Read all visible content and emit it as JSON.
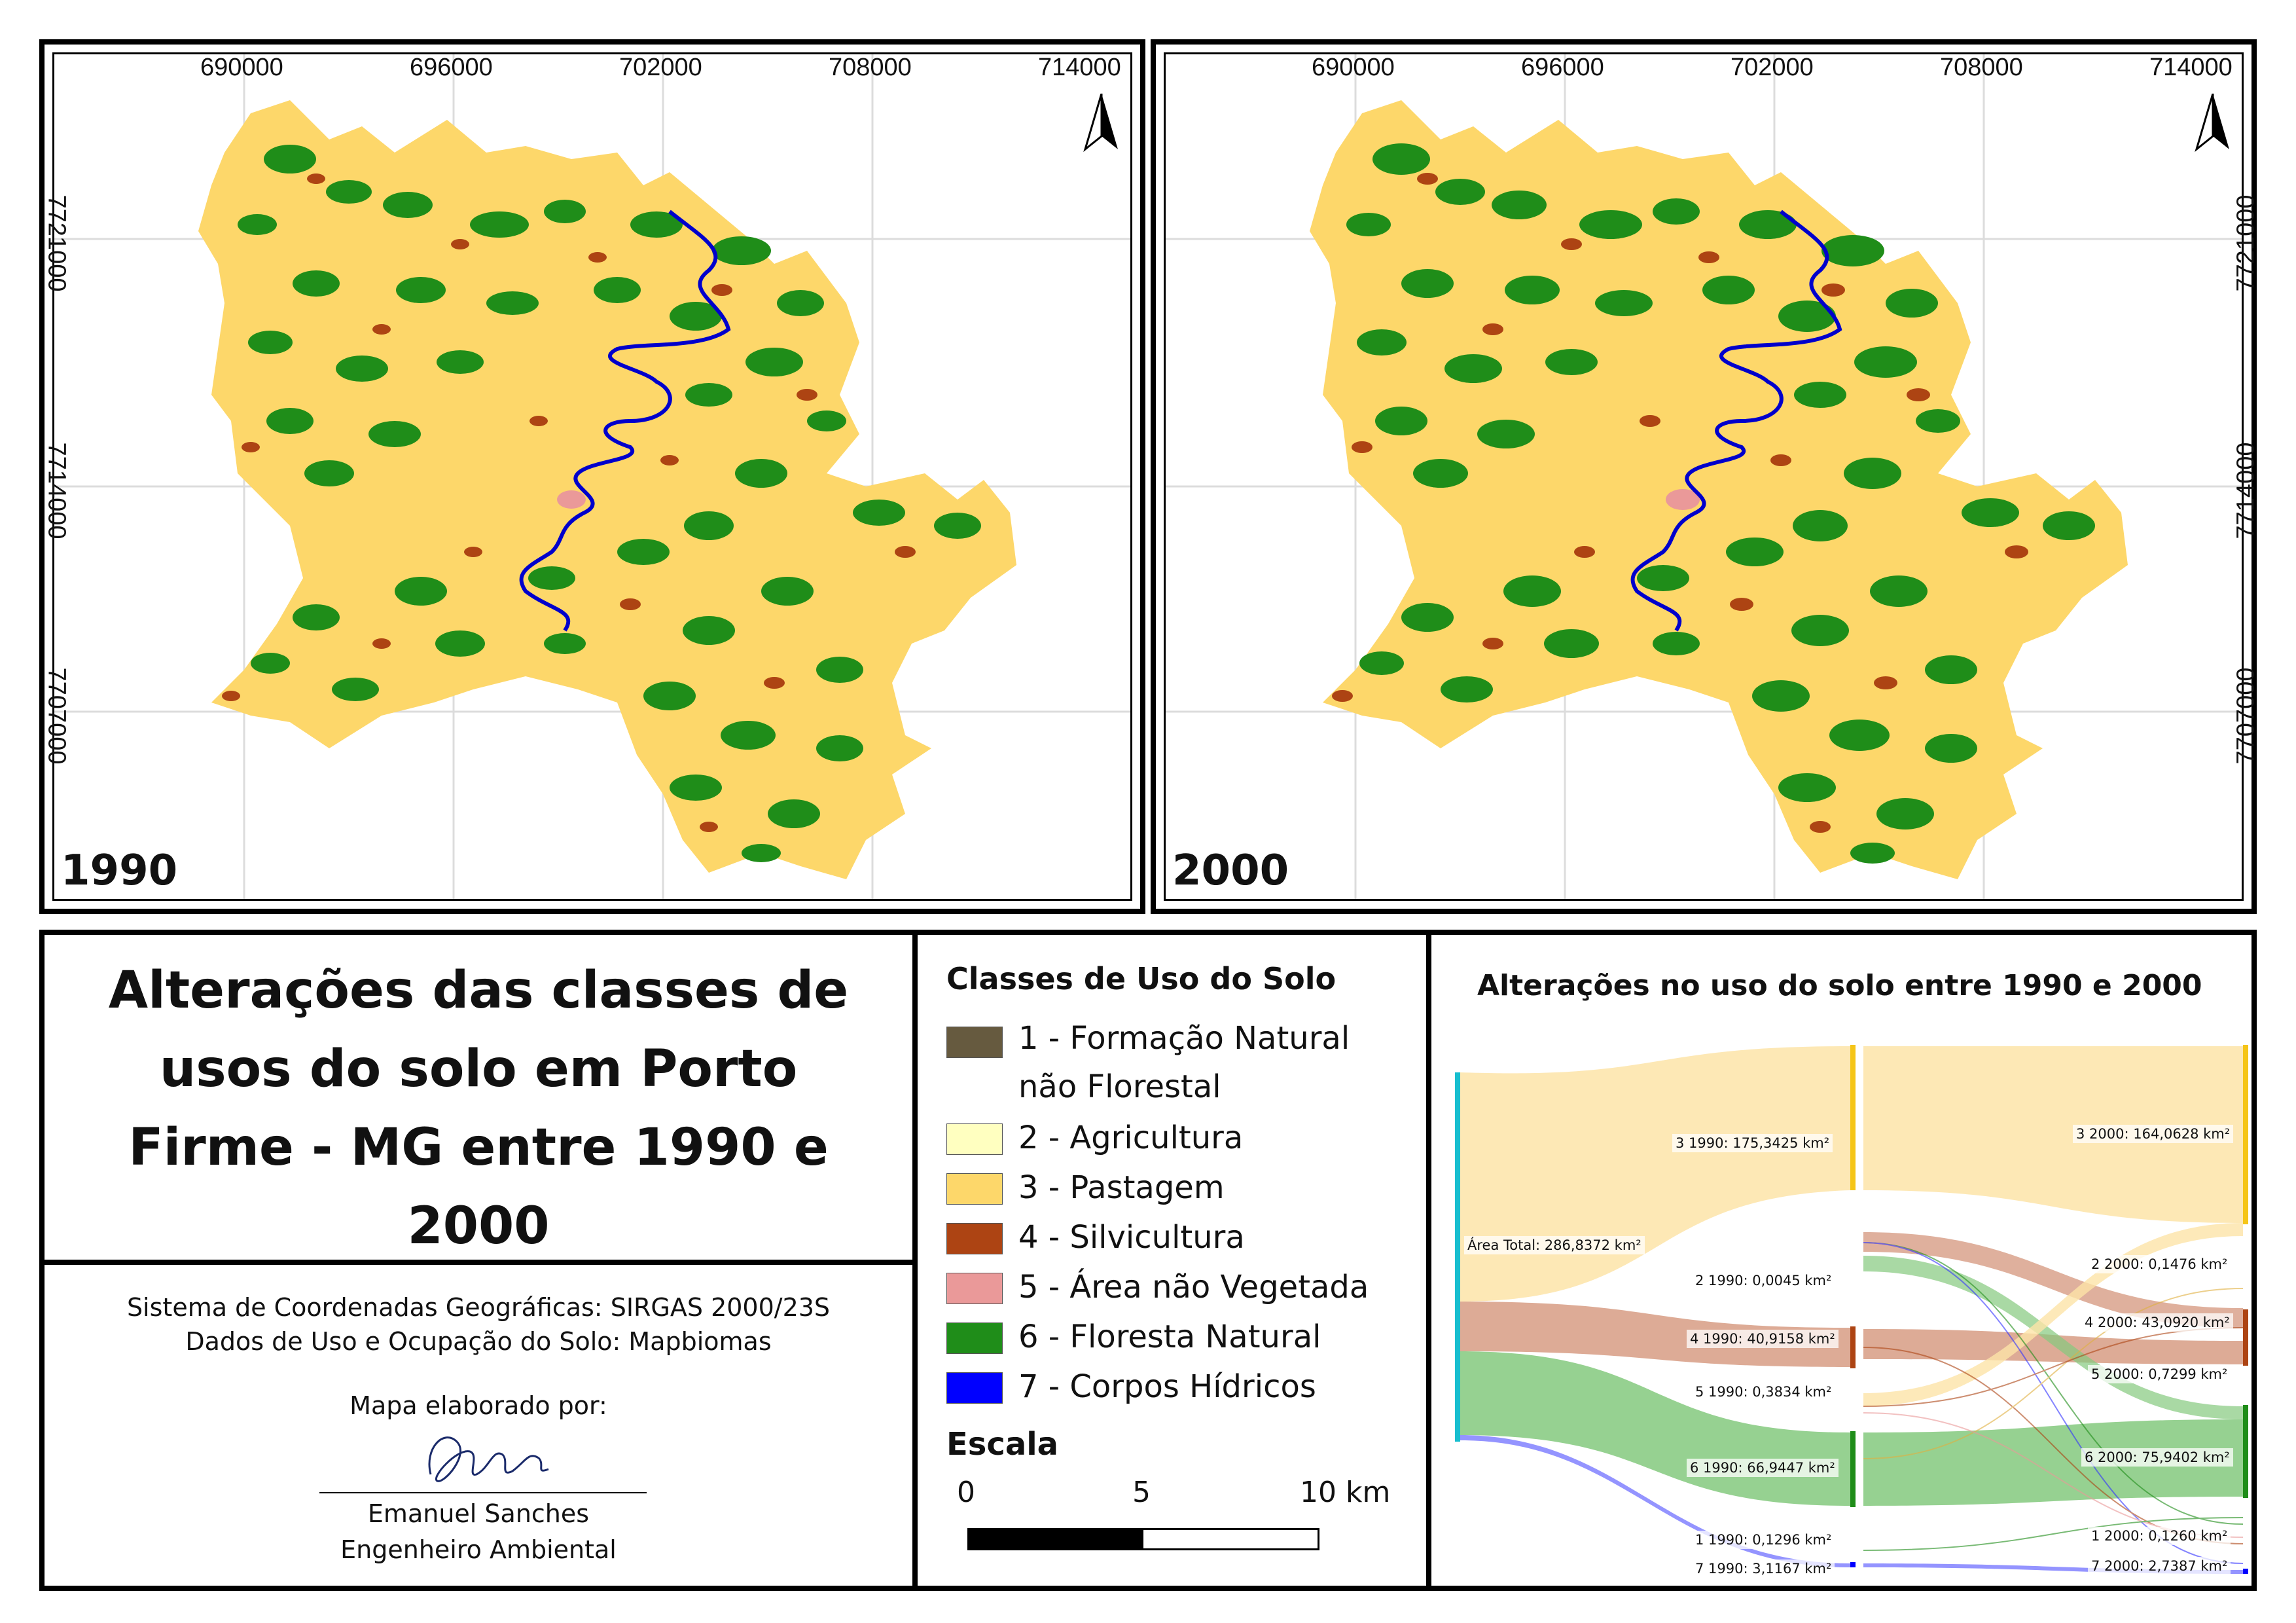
{
  "maps": [
    {
      "year": "1990",
      "x_ticks": [
        "690000",
        "696000",
        "702000",
        "708000",
        "714000"
      ],
      "y_ticks": [
        "7721000",
        "7714000",
        "7707000"
      ],
      "north_arrow": "north-arrow-icon"
    },
    {
      "year": "2000",
      "x_ticks": [
        "690000",
        "696000",
        "702000",
        "708000",
        "714000"
      ],
      "y_ticks": [
        "7721000",
        "7714000",
        "7707000"
      ],
      "north_arrow": "north-arrow-icon"
    }
  ],
  "title": {
    "lines": [
      "Alterações das classes de",
      "usos do solo em Porto",
      "Firme - MG entre 1990 e",
      "2000"
    ]
  },
  "info": {
    "crs": "Sistema de Coordenadas Geográficas: SIRGAS 2000/23S",
    "source": "Dados de Uso e Ocupação do Solo: Mapbiomas",
    "made_by": "Mapa elaborado por:",
    "author": "Emanuel Sanches",
    "role": "Engenheiro Ambiental"
  },
  "legend": {
    "title": "Classes de Uso do Solo",
    "items": [
      {
        "label": "1 - Formação Natural",
        "label2": "não Florestal",
        "color": "#665a3f"
      },
      {
        "label": "2 - Agricultura",
        "color": "#ffffc0"
      },
      {
        "label": "3 - Pastagem",
        "color": "#fdd76a"
      },
      {
        "label": "4 - Silvicultura",
        "color": "#ad4413"
      },
      {
        "label": "5 - Área não Vegetada",
        "color": "#ea9999"
      },
      {
        "label": "6 - Floresta Natural",
        "color": "#1f8d19"
      },
      {
        "label": "7 - Corpos Hídricos",
        "color": "#0000ff"
      }
    ],
    "scale_title": "Escala",
    "scale_labels": [
      "0",
      "5",
      "10 km"
    ]
  },
  "sankey": {
    "title": "Alterações no uso do solo entre 1990 e 2000",
    "total_label": "Área Total: 286,8372 km²",
    "left_labels": [
      "3 1990: 175,3425 km²",
      "2 1990: 0,0045 km²",
      "4 1990: 40,9158 km²",
      "5 1990: 0,3834 km²",
      "6 1990: 66,9447 km²",
      "1 1990: 0,1296 km²",
      "7 1990: 3,1167 km²"
    ],
    "right_labels": [
      "3 2000: 164,0628 km²",
      "2 2000: 0,1476 km²",
      "4 2000: 43,0920 km²",
      "5 2000: 0,7299 km²",
      "6 2000: 75,9402 km²",
      "1 2000: 0,1260 km²",
      "7 2000: 2,7387 km²"
    ]
  },
  "chart_data": {
    "type": "sankey",
    "title": "Alterações no uso do solo entre 1990 e 2000",
    "total_km2": 286.8372,
    "nodes_1990": [
      {
        "class": "3",
        "value": 175.3425
      },
      {
        "class": "2",
        "value": 0.0045
      },
      {
        "class": "4",
        "value": 40.9158
      },
      {
        "class": "5",
        "value": 0.3834
      },
      {
        "class": "6",
        "value": 66.9447
      },
      {
        "class": "1",
        "value": 0.1296
      },
      {
        "class": "7",
        "value": 3.1167
      }
    ],
    "nodes_2000": [
      {
        "class": "3",
        "value": 164.0628
      },
      {
        "class": "2",
        "value": 0.1476
      },
      {
        "class": "4",
        "value": 43.092
      },
      {
        "class": "5",
        "value": 0.7299
      },
      {
        "class": "6",
        "value": 75.9402
      },
      {
        "class": "1",
        "value": 0.126
      },
      {
        "class": "7",
        "value": 2.7387
      }
    ]
  }
}
